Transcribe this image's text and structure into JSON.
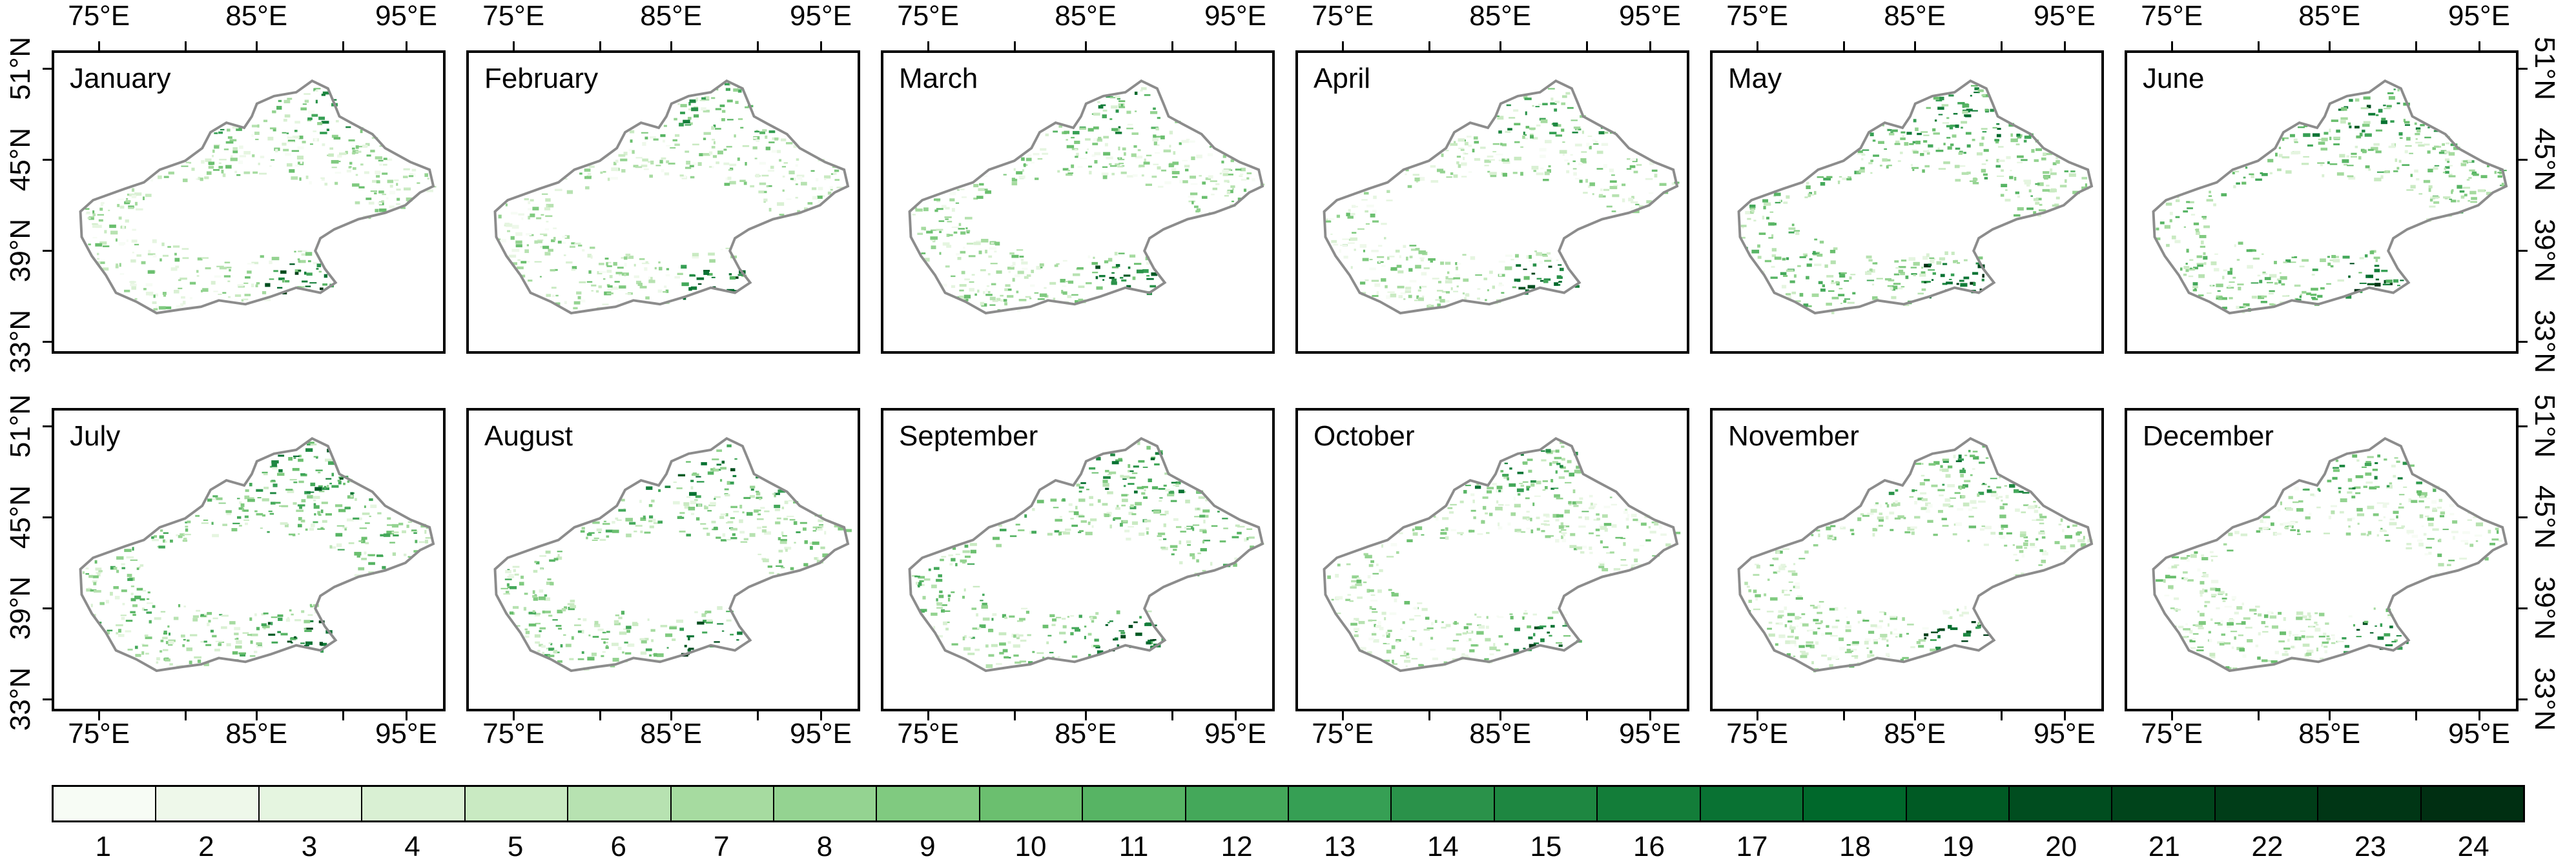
{
  "months": [
    "January",
    "February",
    "March",
    "April",
    "May",
    "June",
    "July",
    "August",
    "September",
    "October",
    "November",
    "December"
  ],
  "lon_ticks": [
    "75°E",
    "85°E",
    "95°E"
  ],
  "lat_ticks": [
    "51°N",
    "45°N",
    "39°N",
    "33°N"
  ],
  "colors": {
    "frame": "#000000",
    "outline": "#8c8c8c",
    "legend": [
      "#f7fcf5",
      "#eef8ea",
      "#e5f5e0",
      "#d9f0d3",
      "#c9eac2",
      "#b7e2b1",
      "#a6dba0",
      "#94d391",
      "#80ca80",
      "#6bbf6f",
      "#57b464",
      "#44a85a",
      "#369f54",
      "#2a924a",
      "#1e8741",
      "#137d39",
      "#097233",
      "#00682b",
      "#005a24",
      "#004d1f",
      "#00441b",
      "#003d18",
      "#003615",
      "#002f12"
    ]
  },
  "legend_values": [
    "1",
    "2",
    "3",
    "4",
    "5",
    "6",
    "7",
    "8",
    "9",
    "10",
    "11",
    "12",
    "13",
    "14",
    "15",
    "16",
    "17",
    "18",
    "19",
    "20",
    "21",
    "22",
    "23",
    "24"
  ]
}
